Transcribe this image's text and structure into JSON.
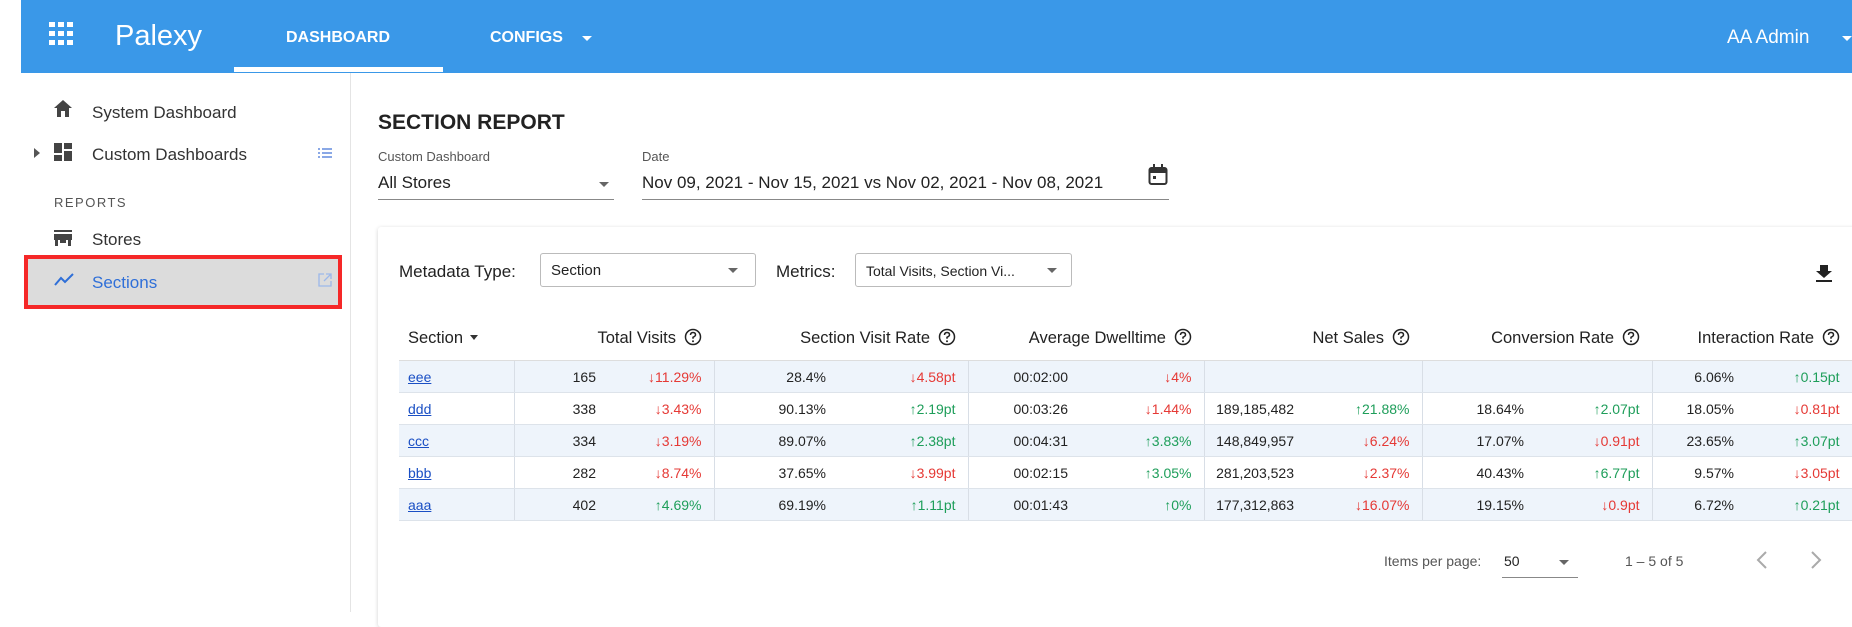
{
  "header": {
    "brand": "Palexy",
    "tabs": [
      "DASHBOARD",
      "CONFIGS"
    ],
    "user": "AA Admin"
  },
  "sidebar": {
    "items": [
      "System Dashboard",
      "Custom Dashboards"
    ],
    "section_label": "REPORTS",
    "reports": [
      "Stores",
      "Sections"
    ]
  },
  "page": {
    "title": "SECTION REPORT",
    "custom_dashboard": {
      "label": "Custom Dashboard",
      "value": "All Stores"
    },
    "date": {
      "label": "Date",
      "value": "Nov 09, 2021 - Nov 15, 2021 vs Nov 02, 2021 - Nov 08, 2021"
    }
  },
  "toolbar": {
    "metadata_label": "Metadata Type:",
    "metadata_value": "Section",
    "metrics_label": "Metrics:",
    "metrics_value": "Total Visits, Section Vi..."
  },
  "table": {
    "columns": [
      "Section",
      "Total Visits",
      "Section Visit Rate",
      "Average Dwelltime",
      "Net Sales",
      "Conversion Rate",
      "Interaction Rate"
    ],
    "rows": [
      {
        "section": "eee",
        "cells": [
          [
            "165",
            "↓11.29%"
          ],
          [
            "28.4%",
            "↓4.58pt"
          ],
          [
            "00:02:00",
            "↓4%"
          ],
          null,
          null,
          [
            "6.06%",
            "↑0.15pt"
          ]
        ]
      },
      {
        "section": "ddd",
        "cells": [
          [
            "338",
            "↓3.43%"
          ],
          [
            "90.13%",
            "↑2.19pt"
          ],
          [
            "00:03:26",
            "↓1.44%"
          ],
          [
            "189,185,482",
            "↑21.88%"
          ],
          [
            "18.64%",
            "↑2.07pt"
          ],
          [
            "18.05%",
            "↓0.81pt"
          ]
        ]
      },
      {
        "section": "ccc",
        "cells": [
          [
            "334",
            "↓3.19%"
          ],
          [
            "89.07%",
            "↑2.38pt"
          ],
          [
            "00:04:31",
            "↑3.83%"
          ],
          [
            "148,849,957",
            "↓6.24%"
          ],
          [
            "17.07%",
            "↓0.91pt"
          ],
          [
            "23.65%",
            "↑3.07pt"
          ]
        ]
      },
      {
        "section": "bbb",
        "cells": [
          [
            "282",
            "↓8.74%"
          ],
          [
            "37.65%",
            "↓3.99pt"
          ],
          [
            "00:02:15",
            "↑3.05%"
          ],
          [
            "281,203,523",
            "↓2.37%"
          ],
          [
            "40.43%",
            "↑6.77pt"
          ],
          [
            "9.57%",
            "↓3.05pt"
          ]
        ]
      },
      {
        "section": "aaa",
        "cells": [
          [
            "402",
            "↑4.69%"
          ],
          [
            "69.19%",
            "↑1.11pt"
          ],
          [
            "00:01:43",
            "↑0%"
          ],
          [
            "177,312,863",
            "↓16.07%"
          ],
          [
            "19.15%",
            "↓0.9pt"
          ],
          [
            "6.72%",
            "↑0.21pt"
          ]
        ]
      }
    ]
  },
  "pagination": {
    "label": "Items per page:",
    "size": "50",
    "range": "1 – 5 of 5"
  }
}
